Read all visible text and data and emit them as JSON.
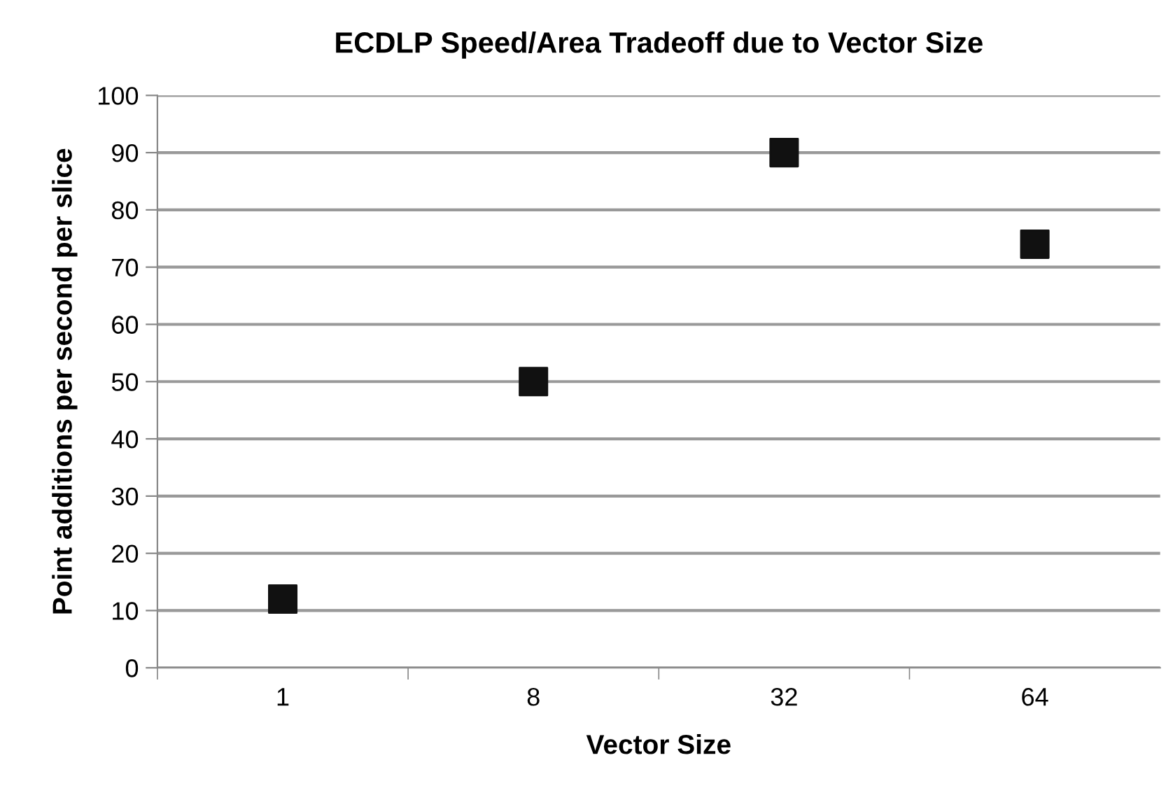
{
  "chart_data": {
    "type": "scatter",
    "title": "ECDLP Speed/Area Tradeoff due to Vector Size",
    "xlabel": "Vector Size",
    "ylabel": "Point additions per second per slice",
    "categories": [
      "1",
      "8",
      "32",
      "64"
    ],
    "series": [
      {
        "color": "#111111",
        "values": [
          12,
          50,
          90,
          74
        ]
      }
    ],
    "ylim": [
      0,
      100
    ],
    "yticks": [
      0,
      10,
      20,
      30,
      40,
      50,
      60,
      70,
      80,
      90,
      100
    ],
    "grid": "y",
    "marker": "square",
    "legend": false
  }
}
